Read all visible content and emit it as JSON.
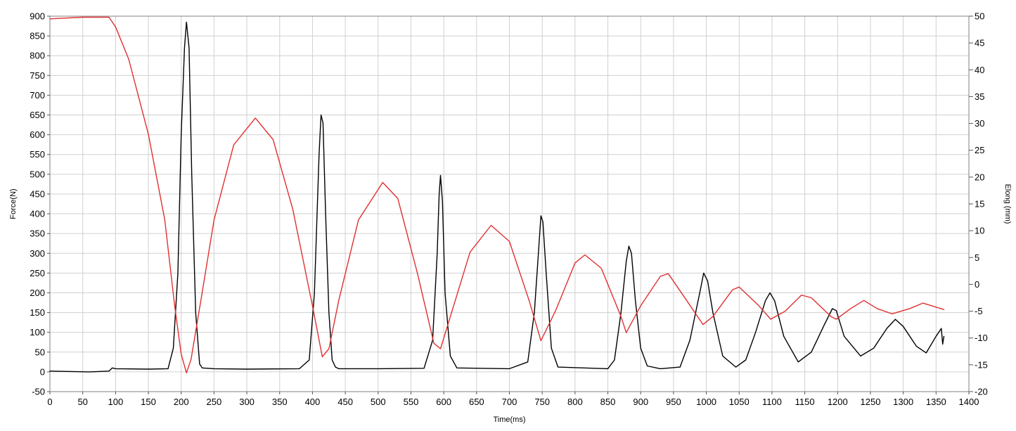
{
  "chart_data": {
    "type": "line",
    "title": "",
    "xlabel": "Time(ms)",
    "ylabel": "Force(N)",
    "y2label": "Elong (mm)",
    "xlim": [
      0,
      1400
    ],
    "ylim": [
      -50,
      900
    ],
    "y2lim": [
      -20,
      50
    ],
    "grid": true,
    "legend": "none",
    "x_ticks": [
      "0",
      "50",
      "100",
      "150",
      "200",
      "250",
      "300",
      "350",
      "400",
      "450",
      "500",
      "550",
      "600",
      "650",
      "700",
      "750",
      "800",
      "850",
      "900",
      "950",
      "1000",
      "1050",
      "1100",
      "1150",
      "1200",
      "1250",
      "1300",
      "1350",
      "1400"
    ],
    "y_ticks": [
      "900",
      "850",
      "800",
      "750",
      "700",
      "650",
      "600",
      "550",
      "500",
      "450",
      "400",
      "350",
      "300",
      "250",
      "200",
      "150",
      "100",
      "50",
      "0",
      "-50"
    ],
    "y2_ticks": [
      "50",
      "45",
      "40",
      "35",
      "30",
      "25",
      "20",
      "15",
      "10",
      "5",
      "0",
      "-5",
      "-10",
      "-15",
      "-20"
    ],
    "colors": {
      "force": "#000000",
      "elong": "#e03030",
      "grid": "#d0d0d0"
    },
    "series": [
      {
        "axis": "left",
        "color": "#000000",
        "x": [
          0,
          60,
          90,
          95,
          100,
          150,
          180,
          188,
          195,
          200,
          205,
          208,
          212,
          216,
          222,
          228,
          232,
          250,
          300,
          380,
          395,
          403,
          410,
          413,
          416,
          420,
          425,
          430,
          435,
          440,
          500,
          570,
          583,
          590,
          593,
          595,
          598,
          602,
          610,
          620,
          700,
          728,
          738,
          745,
          748,
          751,
          756,
          764,
          774,
          850,
          860,
          870,
          878,
          882,
          886,
          892,
          900,
          910,
          930,
          960,
          975,
          990,
          996,
          1002,
          1010,
          1025,
          1045,
          1060,
          1075,
          1090,
          1097,
          1104,
          1118,
          1140,
          1160,
          1180,
          1192,
          1198,
          1210,
          1235,
          1255,
          1275,
          1288,
          1300,
          1320,
          1335,
          1350,
          1358,
          1360,
          1362
        ],
        "y": [
          2,
          0,
          2,
          10,
          8,
          7,
          8,
          60,
          250,
          600,
          820,
          885,
          820,
          500,
          150,
          20,
          10,
          8,
          7,
          8,
          30,
          200,
          550,
          650,
          630,
          400,
          150,
          30,
          12,
          8,
          8,
          9,
          80,
          300,
          450,
          497,
          430,
          200,
          40,
          10,
          8,
          25,
          150,
          320,
          395,
          380,
          250,
          60,
          12,
          8,
          30,
          150,
          280,
          318,
          300,
          180,
          60,
          15,
          8,
          12,
          80,
          200,
          250,
          230,
          150,
          40,
          12,
          30,
          100,
          180,
          200,
          180,
          90,
          25,
          50,
          120,
          160,
          155,
          90,
          40,
          60,
          110,
          133,
          115,
          65,
          48,
          90,
          110,
          70,
          90
        ]
      },
      {
        "axis": "right",
        "color": "#e03030",
        "x": [
          0,
          50,
          90,
          100,
          120,
          150,
          175,
          190,
          200,
          208,
          215,
          230,
          250,
          280,
          313,
          340,
          370,
          400,
          415,
          425,
          440,
          470,
          507,
          530,
          560,
          585,
          595,
          610,
          640,
          672,
          700,
          730,
          748,
          770,
          800,
          815,
          840,
          870,
          878,
          900,
          930,
          942,
          970,
          995,
          1010,
          1040,
          1050,
          1080,
          1098,
          1120,
          1145,
          1160,
          1190,
          1198,
          1220,
          1240,
          1260,
          1283,
          1310,
          1330,
          1362
        ],
        "y": [
          49.5,
          49.8,
          49.8,
          48,
          42,
          28,
          12,
          -4,
          -13,
          -16.5,
          -14,
          -3,
          12,
          26,
          31,
          27,
          14,
          -4,
          -13.5,
          -12,
          -3,
          12,
          19,
          16,
          2,
          -11,
          -12,
          -6,
          6,
          11,
          8,
          -3,
          -10.5,
          -5,
          4,
          5.5,
          3,
          -6,
          -9,
          -4,
          1.5,
          2,
          -3,
          -7.5,
          -6,
          -1,
          -0.5,
          -4,
          -6.5,
          -5,
          -2,
          -2.5,
          -6,
          -6.5,
          -4.5,
          -3,
          -4.5,
          -5.5,
          -4.5,
          -3.5,
          -4.7
        ]
      }
    ]
  }
}
